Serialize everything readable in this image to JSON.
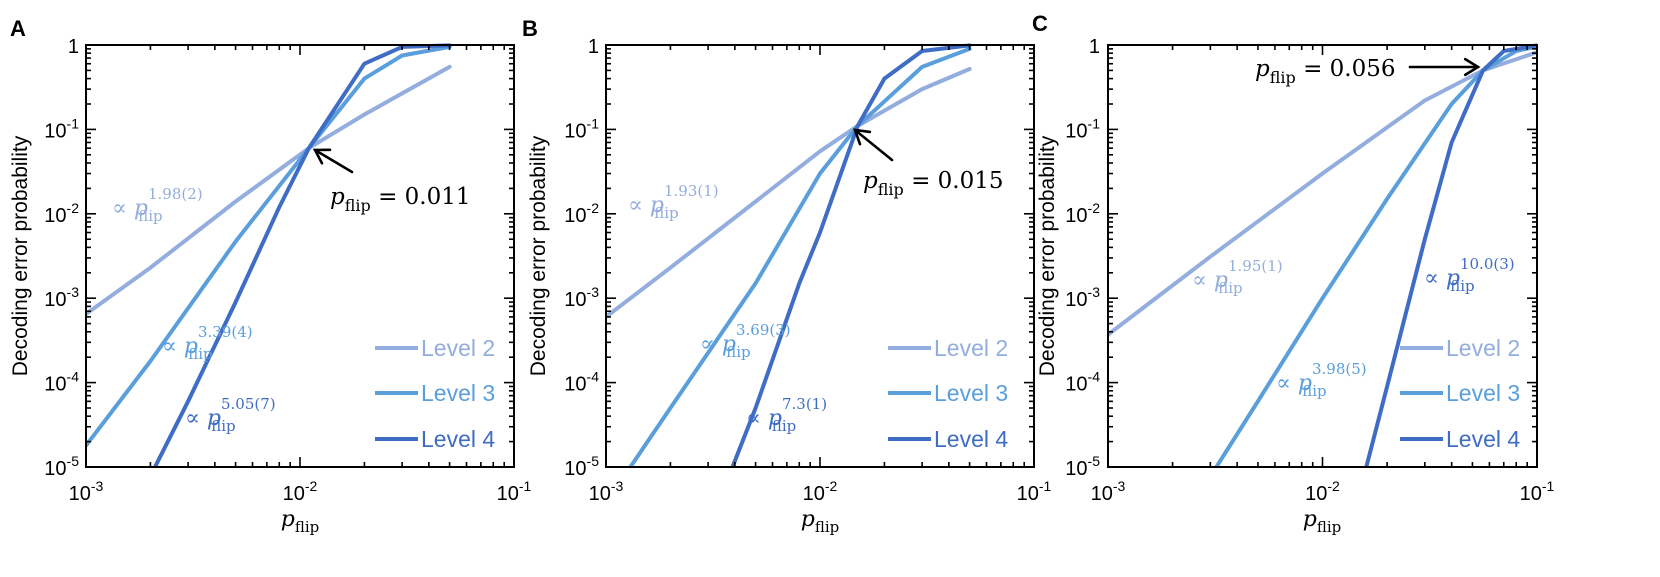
{
  "colors": {
    "l2": "#93ADDE",
    "l3": "#5A9FDB",
    "l4": "#3F6CC4",
    "axis": "#000000",
    "text": "#000000"
  },
  "shared": {
    "ylabel": "Decoding error probability",
    "xlabel_main": "p",
    "xlabel_sub": "flip",
    "prop": "∝ p",
    "flip": "flip",
    "pflip_label": "p",
    "equals": " = ",
    "ytick_labels": [
      {
        "mant": "1",
        "exp": ""
      },
      {
        "mant": "10",
        "exp": "-1"
      },
      {
        "mant": "10",
        "exp": "-2"
      },
      {
        "mant": "10",
        "exp": "-3"
      },
      {
        "mant": "10",
        "exp": "-4"
      },
      {
        "mant": "10",
        "exp": "-5"
      }
    ],
    "xtick_labels": [
      {
        "mant": "10",
        "exp": "-3"
      },
      {
        "mant": "10",
        "exp": "-2"
      },
      {
        "mant": "10",
        "exp": "-1"
      }
    ]
  },
  "chart_data": [
    {
      "panel": "A",
      "type": "line",
      "xscale": "log",
      "yscale": "log",
      "xlim": [
        0.001,
        0.1
      ],
      "ylim": [
        1e-05,
        1
      ],
      "legend": [
        "Level 2",
        "Level 3",
        "Level 4"
      ],
      "legend_placement": "bottom-right",
      "series": [
        {
          "name": "Level 2",
          "x": [
            0.001,
            0.002,
            0.005,
            0.011,
            0.02,
            0.05
          ],
          "y": [
            0.00065,
            0.0023,
            0.014,
            0.06,
            0.15,
            0.55
          ]
        },
        {
          "name": "Level 3",
          "x": [
            0.001,
            0.002,
            0.005,
            0.011,
            0.02,
            0.03,
            0.05
          ],
          "y": [
            1.8e-05,
            0.00018,
            0.0047,
            0.06,
            0.4,
            0.75,
            0.95
          ]
        },
        {
          "name": "Level 4",
          "x": [
            0.0021,
            0.003,
            0.005,
            0.008,
            0.011,
            0.02,
            0.03,
            0.05
          ],
          "y": [
            1e-05,
            6e-05,
            0.0009,
            0.012,
            0.06,
            0.6,
            0.95,
            0.99
          ]
        }
      ],
      "annotations": [
        {
          "kind": "fit",
          "series": "Level 2",
          "exponent": "1.98(2)"
        },
        {
          "kind": "fit",
          "series": "Level 3",
          "exponent": "3.39(4)"
        },
        {
          "kind": "fit",
          "series": "Level 4",
          "exponent": "5.05(7)"
        },
        {
          "kind": "threshold",
          "value": "0.011",
          "x": 0.011,
          "y": 0.06
        }
      ]
    },
    {
      "panel": "B",
      "type": "line",
      "xscale": "log",
      "yscale": "log",
      "xlim": [
        0.001,
        0.1
      ],
      "ylim": [
        1e-05,
        1
      ],
      "legend": [
        "Level 2",
        "Level 3",
        "Level 4"
      ],
      "legend_placement": "bottom-right",
      "series": [
        {
          "name": "Level 2",
          "x": [
            0.001,
            0.002,
            0.005,
            0.01,
            0.015,
            0.03,
            0.05
          ],
          "y": [
            0.0006,
            0.0023,
            0.014,
            0.055,
            0.11,
            0.3,
            0.52
          ]
        },
        {
          "name": "Level 3",
          "x": [
            0.0013,
            0.002,
            0.005,
            0.01,
            0.015,
            0.03,
            0.05
          ],
          "y": [
            1e-05,
            5e-05,
            0.0015,
            0.03,
            0.11,
            0.55,
            0.9
          ]
        },
        {
          "name": "Level 4",
          "x": [
            0.0039,
            0.005,
            0.008,
            0.01,
            0.015,
            0.02,
            0.03,
            0.05
          ],
          "y": [
            1e-05,
            5e-05,
            0.0015,
            0.006,
            0.11,
            0.4,
            0.85,
            0.99
          ]
        }
      ],
      "annotations": [
        {
          "kind": "fit",
          "series": "Level 2",
          "exponent": "1.93(1)"
        },
        {
          "kind": "fit",
          "series": "Level 3",
          "exponent": "3.69(3)"
        },
        {
          "kind": "fit",
          "series": "Level 4",
          "exponent": "7.3(1)"
        },
        {
          "kind": "threshold",
          "value": "0.015",
          "x": 0.015,
          "y": 0.11
        }
      ]
    },
    {
      "panel": "C",
      "type": "line",
      "xscale": "log",
      "yscale": "log",
      "xlim": [
        0.001,
        0.1
      ],
      "ylim": [
        1e-05,
        1
      ],
      "legend": [
        "Level 2",
        "Level 3",
        "Level 4"
      ],
      "legend_placement": "bottom-right",
      "series": [
        {
          "name": "Level 2",
          "x": [
            0.001,
            0.003,
            0.01,
            0.03,
            0.056,
            0.1
          ],
          "y": [
            0.00037,
            0.0031,
            0.03,
            0.22,
            0.5,
            0.82
          ]
        },
        {
          "name": "Level 3",
          "x": [
            0.0032,
            0.005,
            0.01,
            0.02,
            0.04,
            0.056,
            0.08,
            0.1
          ],
          "y": [
            1e-05,
            6e-05,
            0.001,
            0.015,
            0.2,
            0.5,
            0.85,
            0.96
          ]
        },
        {
          "name": "Level 4",
          "x": [
            0.016,
            0.02,
            0.03,
            0.04,
            0.056,
            0.07,
            0.1
          ],
          "y": [
            1e-05,
            9e-05,
            0.005,
            0.07,
            0.5,
            0.85,
            0.99
          ]
        }
      ],
      "annotations": [
        {
          "kind": "fit",
          "series": "Level 2",
          "exponent": "1.95(1)"
        },
        {
          "kind": "fit",
          "series": "Level 3",
          "exponent": "3.98(5)"
        },
        {
          "kind": "fit",
          "series": "Level 4",
          "exponent": "10.0(3)"
        },
        {
          "kind": "threshold",
          "value": "0.056",
          "x": 0.056,
          "y": 0.5
        }
      ]
    }
  ]
}
